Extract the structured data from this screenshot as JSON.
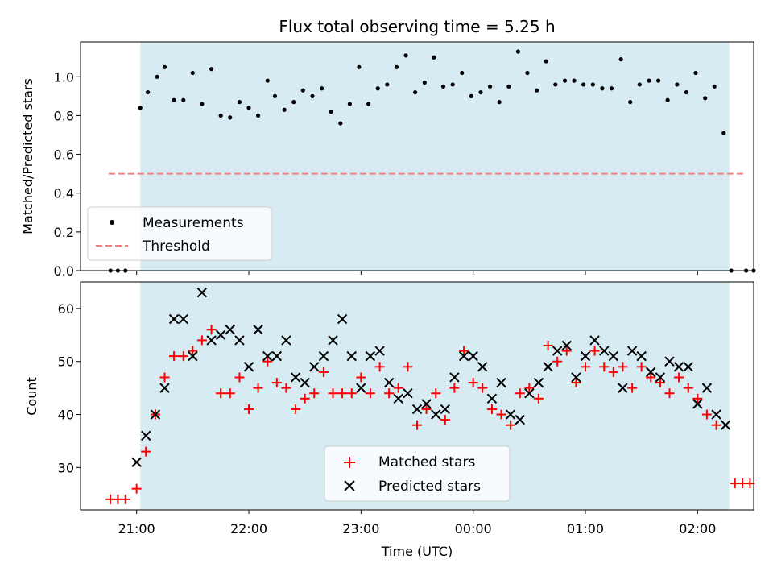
{
  "chart_data": [
    {
      "type": "scatter",
      "title": "Flux total observing time = 5.25 h",
      "ylabel": "Matched/Predicted stars",
      "xlabel": "",
      "xlim": [
        -0.5,
        5.5
      ],
      "ylim": [
        0.0,
        1.18
      ],
      "yticks": [
        "0.0",
        "0.2",
        "0.4",
        "0.6",
        "0.8",
        "1.0"
      ],
      "observing_window": [
        0.033,
        5.283
      ],
      "threshold": {
        "name": "Threshold",
        "value": 0.5,
        "x_range": [
          -0.25,
          5.42
        ],
        "color": "#f08080"
      },
      "series": [
        {
          "name": "Measurements",
          "color": "#000000",
          "x": [
            -0.233,
            -0.167,
            -0.1,
            0.033,
            0.1,
            0.183,
            0.25,
            0.333,
            0.417,
            0.5,
            0.583,
            0.667,
            0.75,
            0.833,
            0.917,
            1.0,
            1.083,
            1.167,
            1.233,
            1.317,
            1.4,
            1.483,
            1.567,
            1.65,
            1.733,
            1.817,
            1.9,
            1.983,
            2.067,
            2.15,
            2.233,
            2.317,
            2.4,
            2.483,
            2.567,
            2.65,
            2.733,
            2.817,
            2.9,
            2.983,
            3.067,
            3.15,
            3.233,
            3.317,
            3.4,
            3.483,
            3.567,
            3.65,
            3.733,
            3.817,
            3.9,
            3.983,
            4.067,
            4.15,
            4.233,
            4.317,
            4.4,
            4.483,
            4.567,
            4.65,
            4.733,
            4.817,
            4.9,
            4.983,
            5.067,
            5.15,
            5.233,
            5.3,
            5.433,
            5.5
          ],
          "y": [
            0.0,
            0.0,
            0.0,
            0.84,
            0.92,
            1.0,
            1.05,
            0.88,
            0.88,
            1.02,
            0.86,
            1.04,
            0.8,
            0.79,
            0.87,
            0.84,
            0.8,
            0.98,
            0.9,
            0.83,
            0.87,
            0.93,
            0.9,
            0.94,
            0.82,
            0.76,
            0.86,
            1.05,
            0.86,
            0.94,
            0.96,
            1.05,
            1.11,
            0.92,
            0.97,
            1.1,
            0.95,
            0.96,
            1.02,
            0.9,
            0.92,
            0.95,
            0.87,
            0.95,
            1.13,
            1.02,
            0.93,
            1.08,
            0.96,
            0.98,
            0.98,
            0.96,
            0.96,
            0.94,
            0.94,
            1.09,
            0.87,
            0.96,
            0.98,
            0.98,
            0.88,
            0.96,
            0.92,
            1.02,
            0.89,
            0.95,
            0.71,
            0.0,
            0.0,
            0.0
          ]
        }
      ],
      "legend": {
        "position": "lower-left",
        "entries": [
          "Measurements",
          "Threshold"
        ]
      }
    },
    {
      "type": "scatter",
      "title": "",
      "ylabel": "Count",
      "xlabel": "Time (UTC)",
      "xlim": [
        -0.5,
        5.5
      ],
      "ylim": [
        22,
        65
      ],
      "yticks": [
        "30",
        "40",
        "50",
        "60"
      ],
      "xticks": [
        "21:00",
        "22:00",
        "23:00",
        "00:00",
        "01:00",
        "02:00"
      ],
      "observing_window": [
        0.033,
        5.283
      ],
      "series": [
        {
          "name": "Matched stars",
          "color": "#ff0000",
          "marker": "+",
          "x": [
            -0.233,
            -0.167,
            -0.1,
            0.0,
            0.083,
            0.167,
            0.25,
            0.333,
            0.417,
            0.5,
            0.583,
            0.667,
            0.75,
            0.833,
            0.917,
            1.0,
            1.083,
            1.167,
            1.25,
            1.333,
            1.417,
            1.5,
            1.583,
            1.667,
            1.75,
            1.833,
            1.917,
            2.0,
            2.083,
            2.167,
            2.25,
            2.333,
            2.417,
            2.5,
            2.583,
            2.667,
            2.75,
            2.833,
            2.917,
            3.0,
            3.083,
            3.167,
            3.25,
            3.333,
            3.417,
            3.5,
            3.583,
            3.667,
            3.75,
            3.833,
            3.917,
            4.0,
            4.083,
            4.167,
            4.25,
            4.333,
            4.417,
            4.5,
            4.583,
            4.667,
            4.75,
            4.833,
            4.917,
            5.0,
            5.083,
            5.167,
            5.333,
            5.4,
            5.467
          ],
          "y": [
            24,
            24,
            24,
            26,
            33,
            40,
            47,
            51,
            51,
            52,
            54,
            56,
            44,
            44,
            47,
            41,
            45,
            50,
            46,
            45,
            41,
            43,
            44,
            48,
            44,
            44,
            44,
            47,
            44,
            49,
            44,
            45,
            49,
            38,
            41,
            44,
            39,
            45,
            52,
            46,
            45,
            41,
            40,
            38,
            44,
            45,
            43,
            53,
            50,
            52,
            46,
            49,
            52,
            49,
            48,
            49,
            45,
            49,
            47,
            46,
            44,
            47,
            45,
            43,
            40,
            38,
            27,
            27,
            27
          ]
        },
        {
          "name": "Predicted stars",
          "color": "#000000",
          "marker": "x",
          "x": [
            0.0,
            0.083,
            0.167,
            0.25,
            0.333,
            0.417,
            0.5,
            0.583,
            0.667,
            0.75,
            0.833,
            0.917,
            1.0,
            1.083,
            1.167,
            1.25,
            1.333,
            1.417,
            1.5,
            1.583,
            1.667,
            1.75,
            1.833,
            1.917,
            2.0,
            2.083,
            2.167,
            2.25,
            2.333,
            2.417,
            2.5,
            2.583,
            2.667,
            2.75,
            2.833,
            2.917,
            3.0,
            3.083,
            3.167,
            3.25,
            3.333,
            3.417,
            3.5,
            3.583,
            3.667,
            3.75,
            3.833,
            3.917,
            4.0,
            4.083,
            4.167,
            4.25,
            4.333,
            4.417,
            4.5,
            4.583,
            4.667,
            4.75,
            4.833,
            4.917,
            5.0,
            5.083,
            5.167,
            5.25
          ],
          "y": [
            31,
            36,
            40,
            45,
            58,
            58,
            51,
            63,
            54,
            55,
            56,
            54,
            49,
            56,
            51,
            51,
            54,
            47,
            46,
            49,
            51,
            54,
            58,
            51,
            45,
            51,
            52,
            46,
            43,
            44,
            41,
            42,
            40,
            41,
            47,
            51,
            51,
            49,
            43,
            46,
            40,
            39,
            44,
            46,
            49,
            52,
            53,
            47,
            51,
            54,
            52,
            51,
            45,
            52,
            51,
            48,
            47,
            50,
            49,
            49,
            42,
            45,
            40,
            38
          ]
        }
      ],
      "legend": {
        "position": "lower-center",
        "entries": [
          "Matched stars",
          "Predicted stars"
        ]
      }
    }
  ]
}
